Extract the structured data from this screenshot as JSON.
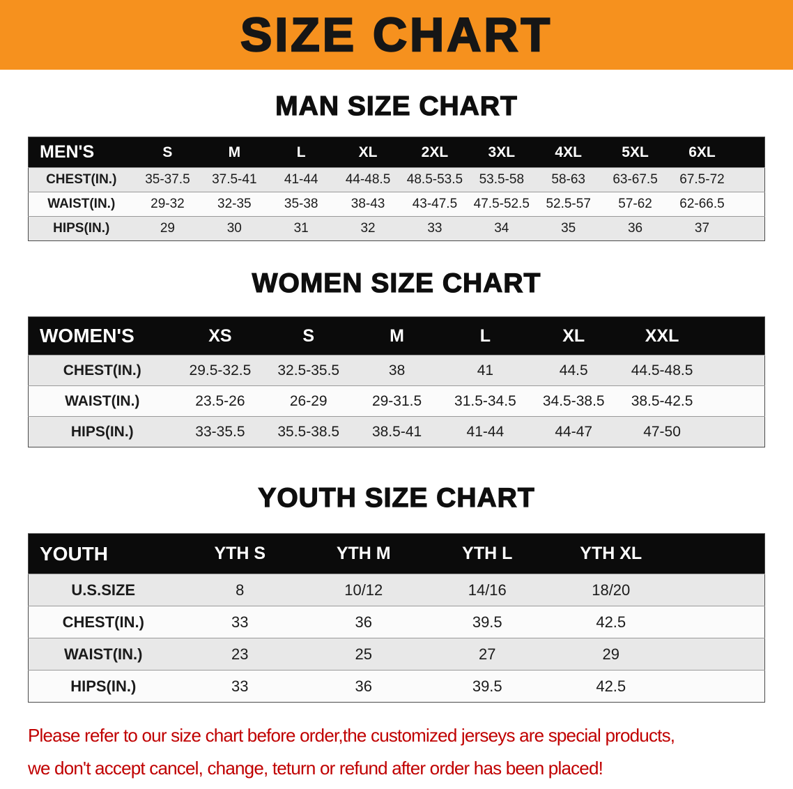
{
  "banner": {
    "title": "SIZE CHART",
    "bg_color": "#F6911E"
  },
  "colors": {
    "table_header_bg": "#0B0B0B",
    "row_shaded": "#E8E8E8",
    "row_plain": "#FBFBFB",
    "disclaimer_text": "#C00000"
  },
  "disclaimer": {
    "line1": "Please refer to our size chart before order,the customized jerseys are special products,",
    "line2": "we don't accept cancel, change, teturn or refund after order has been placed!",
    "color": "#C00000"
  },
  "chart_data": [
    {
      "type": "table",
      "title": "MAN SIZE CHART",
      "columns": [
        "MEN'S",
        "S",
        "M",
        "L",
        "XL",
        "2XL",
        "3XL",
        "4XL",
        "5XL",
        "6XL"
      ],
      "rows": [
        [
          "CHEST(IN.)",
          "35-37.5",
          "37.5-41",
          "41-44",
          "44-48.5",
          "48.5-53.5",
          "53.5-58",
          "58-63",
          "63-67.5",
          "67.5-72"
        ],
        [
          "WAIST(IN.)",
          "29-32",
          "32-35",
          "35-38",
          "38-43",
          "43-47.5",
          "47.5-52.5",
          "52.5-57",
          "57-62",
          "62-66.5"
        ],
        [
          "HIPS(IN.)",
          "29",
          "30",
          "31",
          "32",
          "33",
          "34",
          "35",
          "36",
          "37"
        ]
      ]
    },
    {
      "type": "table",
      "title": "WOMEN SIZE CHART",
      "columns": [
        "WOMEN'S",
        "XS",
        "S",
        "M",
        "L",
        "XL",
        "XXL"
      ],
      "rows": [
        [
          "CHEST(IN.)",
          "29.5-32.5",
          "32.5-35.5",
          "38",
          "41",
          "44.5",
          "44.5-48.5"
        ],
        [
          "WAIST(IN.)",
          "23.5-26",
          "26-29",
          "29-31.5",
          "31.5-34.5",
          "34.5-38.5",
          "38.5-42.5"
        ],
        [
          "HIPS(IN.)",
          "33-35.5",
          "35.5-38.5",
          "38.5-41",
          "41-44",
          "44-47",
          "47-50"
        ]
      ]
    },
    {
      "type": "table",
      "title": "YOUTH SIZE CHART",
      "columns": [
        "YOUTH",
        "YTH S",
        "YTH M",
        "YTH L",
        "YTH XL"
      ],
      "rows": [
        [
          "U.S.SIZE",
          "8",
          "10/12",
          "14/16",
          "18/20"
        ],
        [
          "CHEST(IN.)",
          "33",
          "36",
          "39.5",
          "42.5"
        ],
        [
          "WAIST(IN.)",
          "23",
          "25",
          "27",
          "29"
        ],
        [
          "HIPS(IN.)",
          "33",
          "36",
          "39.5",
          "42.5"
        ]
      ]
    }
  ]
}
